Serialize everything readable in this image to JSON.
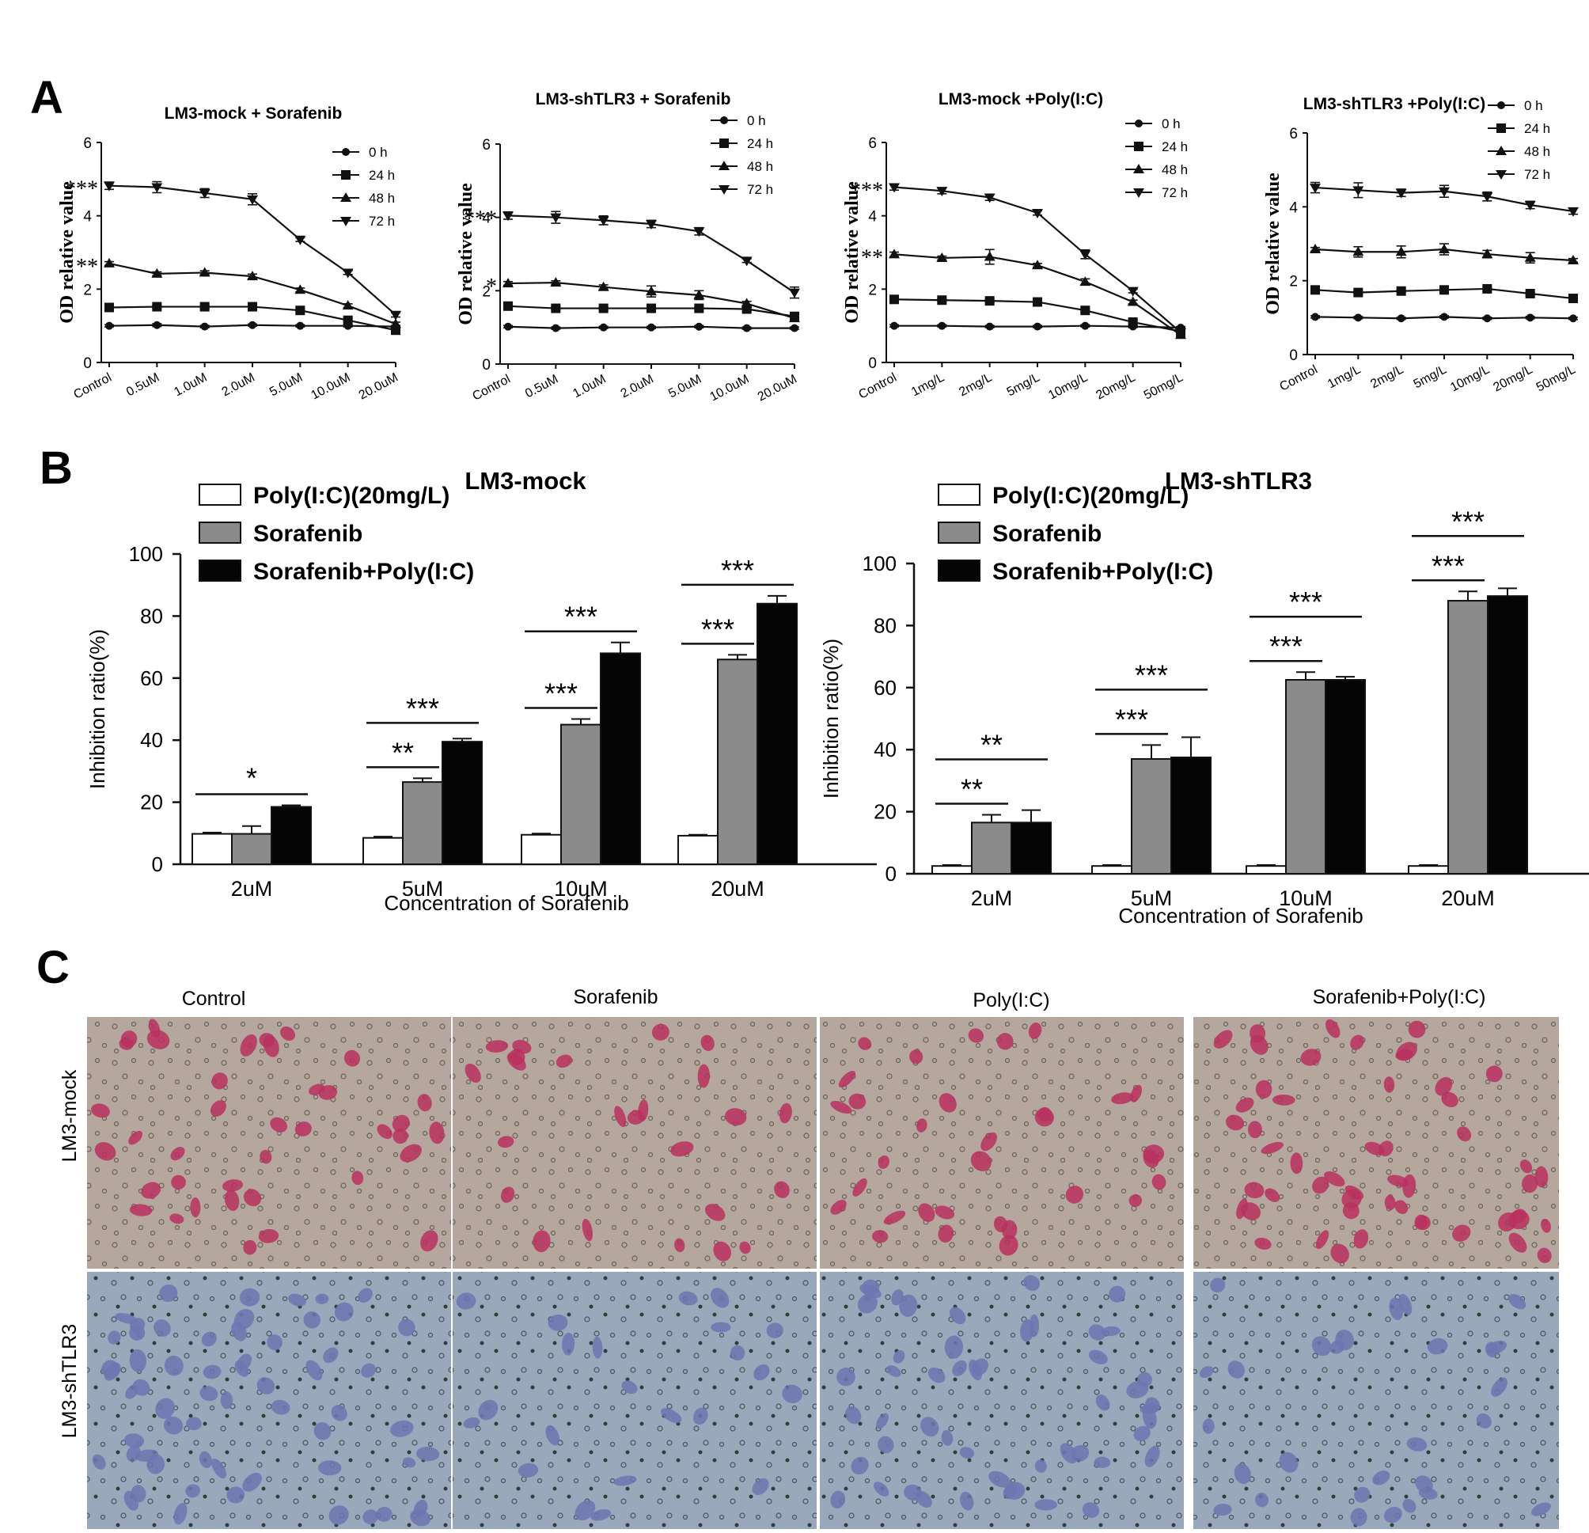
{
  "figure": {
    "panel_labels": [
      "A",
      "B",
      "C"
    ],
    "colors": {
      "axis": "#111111",
      "bar_white": "#ffffff",
      "bar_gray": "#8a8a8a",
      "bar_black": "#050505",
      "stain_purple": "#b8305f",
      "stain_blue": "#6d76b0",
      "mock_background": "#b5a79d",
      "shtlr3_background": "#9aa8bb"
    }
  },
  "chart_data": [
    {
      "id": "A1",
      "panel": "A",
      "type": "line",
      "title": "LM3-mock + Sorafenib",
      "xlabel": "",
      "ylabel": "OD relative value",
      "ylim": [
        0,
        6
      ],
      "yticks": [
        "0",
        "2",
        "4",
        "6"
      ],
      "categories": [
        "Control",
        "0.5uM",
        "1.0uM",
        "2.0uM",
        "5.0uM",
        "10.0uM",
        "20.0uM"
      ],
      "legend": [
        "0 h",
        "24 h",
        "48 h",
        "72 h"
      ],
      "legend_position": "top-right",
      "series": [
        {
          "name": "0 h",
          "marker": "circle",
          "values": [
            1.0,
            1.02,
            0.98,
            1.02,
            1.0,
            1.0,
            0.98
          ]
        },
        {
          "name": "24 h",
          "marker": "square",
          "values": [
            1.5,
            1.52,
            1.52,
            1.52,
            1.42,
            1.15,
            0.88
          ]
        },
        {
          "name": "48 h",
          "marker": "triangle",
          "values": [
            2.7,
            2.42,
            2.45,
            2.35,
            1.98,
            1.55,
            1.05
          ]
        },
        {
          "name": "72 h",
          "marker": "triangle-down",
          "values": [
            4.82,
            4.78,
            4.62,
            4.45,
            3.35,
            2.45,
            1.3
          ]
        }
      ],
      "errors": [
        [
          0.03,
          0.04,
          0.03,
          0.03,
          0.03,
          0.03,
          0.03
        ],
        [
          0.04,
          0.04,
          0.04,
          0.04,
          0.04,
          0.05,
          0.05
        ],
        [
          0.05,
          0.05,
          0.05,
          0.06,
          0.05,
          0.05,
          0.05
        ],
        [
          0.1,
          0.15,
          0.12,
          0.15,
          0.05,
          0.05,
          0.06
        ]
      ],
      "annotations": [
        {
          "text": "***",
          "series": "72 h"
        },
        {
          "text": "**",
          "series": "48 h"
        }
      ]
    },
    {
      "id": "A2",
      "panel": "A",
      "type": "line",
      "title": "LM3-shTLR3  + Sorafenib",
      "xlabel": "",
      "ylabel": "OD relative value",
      "ylim": [
        0,
        6
      ],
      "yticks": [
        "0",
        "2",
        "4",
        "6"
      ],
      "categories": [
        "Control",
        "0.5uM",
        "1.0uM",
        "2.0uM",
        "5.0uM",
        "10.0uM",
        "20.0uM"
      ],
      "legend": [
        "0 h",
        "24 h",
        "48 h",
        "72 h"
      ],
      "legend_position": "top-right",
      "series": [
        {
          "name": "0 h",
          "marker": "circle",
          "values": [
            1.02,
            0.98,
            1.0,
            1.0,
            1.02,
            0.98,
            0.98
          ]
        },
        {
          "name": "24 h",
          "marker": "square",
          "values": [
            1.58,
            1.52,
            1.52,
            1.52,
            1.52,
            1.5,
            1.3
          ]
        },
        {
          "name": "48 h",
          "marker": "triangle",
          "values": [
            2.2,
            2.22,
            2.1,
            1.98,
            1.88,
            1.65,
            1.25
          ]
        },
        {
          "name": "72 h",
          "marker": "triangle-down",
          "values": [
            4.05,
            4.0,
            3.92,
            3.82,
            3.62,
            2.82,
            1.95
          ]
        }
      ],
      "errors": [
        [
          0.03,
          0.03,
          0.03,
          0.03,
          0.03,
          0.03,
          0.03
        ],
        [
          0.04,
          0.04,
          0.04,
          0.04,
          0.04,
          0.04,
          0.05
        ],
        [
          0.05,
          0.05,
          0.06,
          0.15,
          0.12,
          0.06,
          0.05
        ],
        [
          0.1,
          0.16,
          0.12,
          0.1,
          0.1,
          0.05,
          0.15
        ]
      ],
      "annotations": [
        {
          "text": "***",
          "series": "72 h"
        },
        {
          "text": "*",
          "series": "48 h"
        }
      ]
    },
    {
      "id": "A3",
      "panel": "A",
      "type": "line",
      "title": "LM3-mock +Poly(I:C)",
      "xlabel": "",
      "ylabel": "OD relative value",
      "ylim": [
        0,
        6
      ],
      "yticks": [
        "0",
        "2",
        "4",
        "6"
      ],
      "categories": [
        "Control",
        "1mg/L",
        "2mg/L",
        "5mg/L",
        "10mg/L",
        "20mg/L",
        "50mg/L"
      ],
      "legend": [
        "0 h",
        "24 h",
        "48 h",
        "72 h"
      ],
      "legend_position": "top-right",
      "series": [
        {
          "name": "0 h",
          "marker": "circle",
          "values": [
            1.0,
            1.0,
            0.98,
            0.98,
            1.0,
            0.98,
            0.95
          ]
        },
        {
          "name": "24 h",
          "marker": "square",
          "values": [
            1.72,
            1.7,
            1.68,
            1.65,
            1.42,
            1.1,
            0.85
          ]
        },
        {
          "name": "48 h",
          "marker": "triangle",
          "values": [
            2.95,
            2.85,
            2.88,
            2.65,
            2.2,
            1.65,
            0.75
          ]
        },
        {
          "name": "72 h",
          "marker": "triangle-down",
          "values": [
            4.78,
            4.68,
            4.5,
            4.08,
            2.95,
            1.95,
            0.82
          ]
        }
      ],
      "errors": [
        [
          0.03,
          0.03,
          0.03,
          0.03,
          0.03,
          0.03,
          0.03
        ],
        [
          0.04,
          0.04,
          0.04,
          0.04,
          0.04,
          0.05,
          0.05
        ],
        [
          0.06,
          0.05,
          0.2,
          0.05,
          0.08,
          0.05,
          0.05
        ],
        [
          0.08,
          0.08,
          0.08,
          0.06,
          0.12,
          0.05,
          0.05
        ]
      ],
      "annotations": [
        {
          "text": "***",
          "series": "72 h"
        },
        {
          "text": "**",
          "series": "48 h"
        }
      ]
    },
    {
      "id": "A4",
      "panel": "A",
      "type": "line",
      "title": "LM3-shTLR3 +Poly(I:C)",
      "xlabel": "",
      "ylabel": "OD relative value",
      "ylim": [
        0,
        6
      ],
      "yticks": [
        "0",
        "2",
        "4",
        "6"
      ],
      "categories": [
        "Control",
        "1mg/L",
        "2mg/L",
        "5mg/L",
        "10mg/L",
        "20mg/L",
        "50mg/L"
      ],
      "legend": [
        "0 h",
        "24 h",
        "48 h",
        "72 h"
      ],
      "legend_position": "top-right",
      "series": [
        {
          "name": "0 h",
          "marker": "circle",
          "values": [
            1.02,
            1.0,
            0.98,
            1.02,
            0.98,
            1.0,
            0.98
          ]
        },
        {
          "name": "24 h",
          "marker": "square",
          "values": [
            1.75,
            1.68,
            1.72,
            1.75,
            1.78,
            1.65,
            1.52
          ]
        },
        {
          "name": "48 h",
          "marker": "triangle",
          "values": [
            2.85,
            2.78,
            2.78,
            2.85,
            2.72,
            2.62,
            2.55
          ]
        },
        {
          "name": "72 h",
          "marker": "triangle-down",
          "values": [
            4.52,
            4.45,
            4.38,
            4.42,
            4.28,
            4.05,
            3.88
          ]
        }
      ],
      "errors": [
        [
          0.03,
          0.03,
          0.03,
          0.03,
          0.03,
          0.03,
          0.03
        ],
        [
          0.04,
          0.04,
          0.04,
          0.04,
          0.04,
          0.04,
          0.04
        ],
        [
          0.05,
          0.14,
          0.16,
          0.15,
          0.1,
          0.14,
          0.05
        ],
        [
          0.14,
          0.2,
          0.1,
          0.16,
          0.12,
          0.1,
          0.08
        ]
      ],
      "annotations": []
    },
    {
      "id": "B1",
      "panel": "B",
      "type": "bar",
      "title": "LM3-mock",
      "xlabel": "Concentration of Sorafenib",
      "ylabel": "Inhibition ratio(%)",
      "ylim": [
        0,
        100
      ],
      "yticks": [
        "0",
        "20",
        "40",
        "60",
        "80",
        "100"
      ],
      "categories": [
        "2uM",
        "5uM",
        "10uM",
        "20uM"
      ],
      "legend_position": "top-left",
      "series": [
        {
          "name": "Poly(I:C)(20mg/L)",
          "values": [
            9.8,
            8.5,
            9.5,
            9.2
          ],
          "errors": [
            0.4,
            0.4,
            0.4,
            0.3
          ]
        },
        {
          "name": "Sorafenib",
          "values": [
            9.8,
            26.5,
            45,
            66
          ],
          "errors": [
            2.5,
            1.2,
            1.8,
            1.5
          ]
        },
        {
          "name": "Sorafenib+Poly(I:C)",
          "values": [
            18.5,
            39.5,
            68,
            84
          ],
          "errors": [
            0.5,
            1.0,
            3.5,
            2.5
          ]
        }
      ],
      "significance": [
        {
          "category": "2uM",
          "labels": [
            "*"
          ]
        },
        {
          "category": "5uM",
          "labels": [
            "**",
            "***"
          ]
        },
        {
          "category": "10uM",
          "labels": [
            "***",
            "***"
          ]
        },
        {
          "category": "20uM",
          "labels": [
            "***",
            "***"
          ]
        }
      ]
    },
    {
      "id": "B2",
      "panel": "B",
      "type": "bar",
      "title": "LM3-shTLR3",
      "xlabel": "Concentration of Sorafenib",
      "ylabel": "Inhibition ratio(%)",
      "ylim": [
        0,
        100
      ],
      "yticks": [
        "0",
        "20",
        "40",
        "60",
        "80",
        "100"
      ],
      "categories": [
        "2uM",
        "5uM",
        "10uM",
        "20uM"
      ],
      "legend_position": "top-left",
      "series": [
        {
          "name": "Poly(I:C)(20mg/L)",
          "values": [
            2.5,
            2.5,
            2.5,
            2.5
          ],
          "errors": [
            0.3,
            0.3,
            0.3,
            0.3
          ]
        },
        {
          "name": "Sorafenib",
          "values": [
            16.5,
            37,
            62.5,
            88
          ],
          "errors": [
            2.5,
            4.5,
            2.5,
            3.0
          ]
        },
        {
          "name": "Sorafenib+Poly(I:C)",
          "values": [
            16.5,
            37.5,
            62.5,
            89.5
          ],
          "errors": [
            4.0,
            6.5,
            1.0,
            2.5
          ]
        }
      ],
      "significance": [
        {
          "category": "2uM",
          "labels": [
            "**",
            "**"
          ]
        },
        {
          "category": "5uM",
          "labels": [
            "***",
            "***"
          ]
        },
        {
          "category": "10uM",
          "labels": [
            "***",
            "***"
          ]
        },
        {
          "category": "20uM",
          "labels": [
            "***",
            "***"
          ]
        }
      ]
    }
  ],
  "micrographs": {
    "columns": [
      "Control",
      "Sorafenib",
      "Poly(I:C)",
      "Sorafenib+Poly(I:C)"
    ],
    "rows": [
      "LM3-mock",
      "LM3-shTLR3"
    ]
  }
}
